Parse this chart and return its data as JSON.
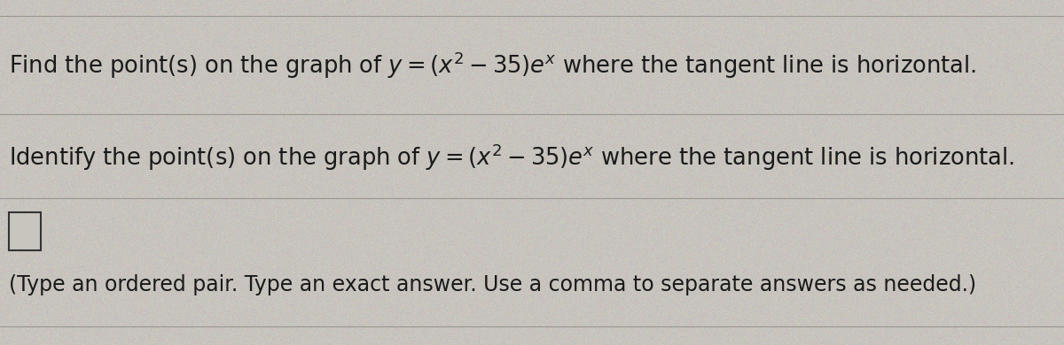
{
  "background_color": "#c8c4be",
  "text_color": "#1a1a1a",
  "line1_plain": "Find the point(s) on the graph of ",
  "line1_formula": "y = (x² – 35)eˣ",
  "line1_end": " where the tangent line is horizontal.",
  "line2_plain": "Identify the point(s) on the graph of ",
  "line2_formula": "y = (x² – 35)eˣ",
  "line2_end": " where the tangent line is horizontal.",
  "line3": "(Type an ordered pair. Type an exact answer. Use a comma to separate answers as needed.)",
  "font_size_line1": 18.5,
  "font_size_line2": 18.5,
  "font_size_line3": 17.0,
  "divider_color": "#9a9690",
  "divider_lw": 0.8,
  "checkbox_color": "#333333",
  "checkbox_bg": "#c8c4be"
}
